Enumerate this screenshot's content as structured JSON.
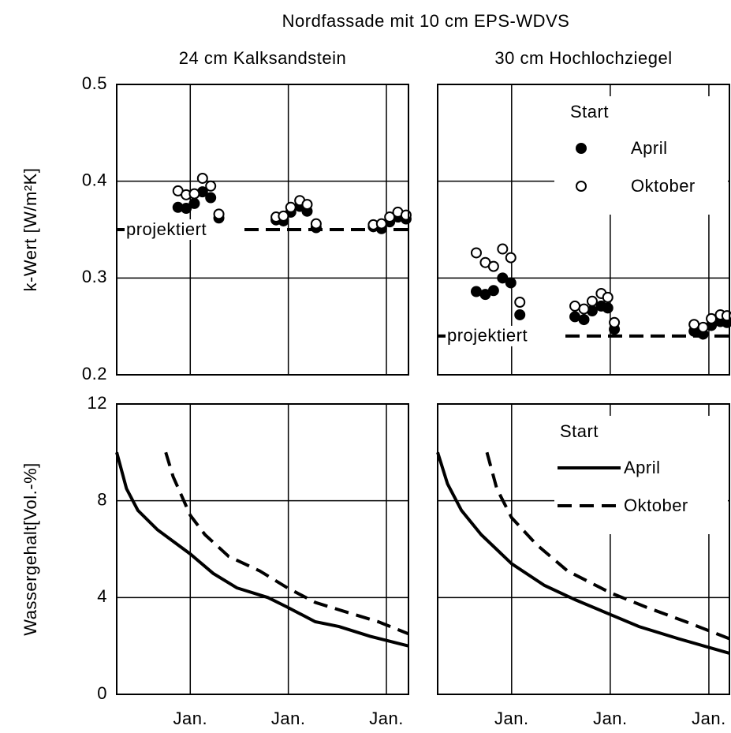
{
  "title": "Nordfassade mit 10 cm EPS-WDVS",
  "chart_data": [
    {
      "type": "scatter",
      "title": "24 cm Kalksandstein",
      "ylabel": "k-Wert [W/m²K]",
      "x": [
        7.5,
        8.5,
        9.5,
        10.5,
        11.5,
        12.5,
        19.5,
        20.4,
        21.3,
        22.4,
        23.3,
        24.4,
        31.4,
        32.4,
        33.4,
        34.4,
        35.4
      ],
      "series": [
        {
          "name": "April",
          "color": "#000000",
          "marker": "filled",
          "values": [
            0.373,
            0.372,
            0.377,
            0.389,
            0.383,
            0.362,
            0.36,
            0.359,
            0.368,
            0.374,
            0.369,
            0.352,
            0.353,
            0.351,
            0.358,
            0.363,
            0.361
          ]
        },
        {
          "name": "Oktober",
          "color": "#000000",
          "marker": "hollow",
          "values": [
            0.39,
            0.386,
            0.387,
            0.403,
            0.395,
            0.366,
            0.363,
            0.364,
            0.373,
            0.38,
            0.376,
            0.356,
            0.355,
            0.356,
            0.363,
            0.368,
            0.365
          ]
        }
      ],
      "reference": {
        "value": 0.35,
        "label": "projektiert"
      },
      "xlim": [
        0,
        35.7
      ],
      "xticks": [
        9,
        21,
        33
      ],
      "ylim": [
        0.2,
        0.5
      ],
      "yticks": [
        0.2,
        0.3,
        0.4,
        0.5
      ],
      "grid": true
    },
    {
      "type": "scatter",
      "title": "30 cm Hochlochziegel",
      "x": [
        4.7,
        5.8,
        6.8,
        7.9,
        8.9,
        10.0,
        16.7,
        17.8,
        18.8,
        19.9,
        20.7,
        21.5,
        31.2,
        32.3,
        33.3,
        34.4,
        35.2
      ],
      "series": [
        {
          "name": "April",
          "color": "#000000",
          "marker": "filled",
          "values": [
            0.286,
            0.283,
            0.287,
            0.3,
            0.295,
            0.262,
            0.26,
            0.257,
            0.266,
            0.271,
            0.269,
            0.247,
            0.245,
            0.242,
            0.251,
            0.255,
            0.254
          ]
        },
        {
          "name": "Oktober",
          "color": "#000000",
          "marker": "hollow",
          "values": [
            0.326,
            0.316,
            0.312,
            0.33,
            0.321,
            0.275,
            0.271,
            0.268,
            0.276,
            0.284,
            0.28,
            0.254,
            0.252,
            0.249,
            0.258,
            0.262,
            0.261
          ]
        }
      ],
      "reference": {
        "value": 0.24,
        "label": "projektiert"
      },
      "legend": "upper right",
      "legend_title": "Start",
      "xlim": [
        0,
        35.5
      ],
      "xticks": [
        9,
        21,
        33
      ],
      "ylim": [
        0.2,
        0.5
      ],
      "yticks": [
        0.2,
        0.3,
        0.4,
        0.5
      ],
      "grid": true
    },
    {
      "type": "line",
      "ylabel": "Wassergehalt[Vol.-%]",
      "series": [
        {
          "name": "April",
          "color": "#000000",
          "dash": "solid",
          "x": [
            0,
            1.2,
            2.6,
            5.0,
            9.0,
            11.8,
            14.7,
            18.5,
            20.9,
            24.3,
            27.2,
            31.0,
            35.7
          ],
          "values": [
            10,
            8.5,
            7.6,
            6.8,
            5.8,
            5.0,
            4.4,
            4.0,
            3.6,
            3.0,
            2.8,
            2.4,
            2.0
          ]
        },
        {
          "name": "Oktober",
          "color": "#000000",
          "dash": "dashed",
          "x": [
            6.0,
            6.9,
            9.0,
            10.8,
            13.7,
            17.5,
            20.9,
            24.3,
            28.1,
            32.0,
            35.7
          ],
          "values": [
            10,
            9.0,
            7.4,
            6.6,
            5.7,
            5.1,
            4.4,
            3.8,
            3.4,
            3.0,
            2.5
          ]
        }
      ],
      "xlim": [
        0,
        35.7
      ],
      "xticks": [
        {
          "value": 9,
          "label": "Jan."
        },
        {
          "value": 21,
          "label": "Jan."
        },
        {
          "value": 33,
          "label": "Jan."
        }
      ],
      "ylim": [
        0,
        12
      ],
      "yticks": [
        0,
        4,
        8,
        12
      ],
      "grid": true
    },
    {
      "type": "line",
      "series": [
        {
          "name": "April",
          "color": "#000000",
          "dash": "solid",
          "x": [
            0,
            1.2,
            2.9,
            5.3,
            9.0,
            13.0,
            16.8,
            21.0,
            24.5,
            29.3,
            35.5
          ],
          "values": [
            10,
            8.7,
            7.6,
            6.6,
            5.4,
            4.5,
            3.9,
            3.3,
            2.8,
            2.3,
            1.7
          ]
        },
        {
          "name": "Oktober",
          "color": "#000000",
          "dash": "dashed",
          "x": [
            6.0,
            7.2,
            9.0,
            12.0,
            15.8,
            21.0,
            25.4,
            30.2,
            35.5
          ],
          "values": [
            10,
            8.5,
            7.3,
            6.2,
            5.1,
            4.2,
            3.6,
            3.0,
            2.3
          ]
        }
      ],
      "legend": "upper right",
      "legend_title": "Start",
      "xlim": [
        0,
        35.5
      ],
      "xticks": [
        {
          "value": 9,
          "label": "Jan."
        },
        {
          "value": 21,
          "label": "Jan."
        },
        {
          "value": 33,
          "label": "Jan."
        }
      ],
      "ylim": [
        0,
        12
      ],
      "yticks": [
        0,
        4,
        8,
        12
      ],
      "grid": true
    }
  ]
}
